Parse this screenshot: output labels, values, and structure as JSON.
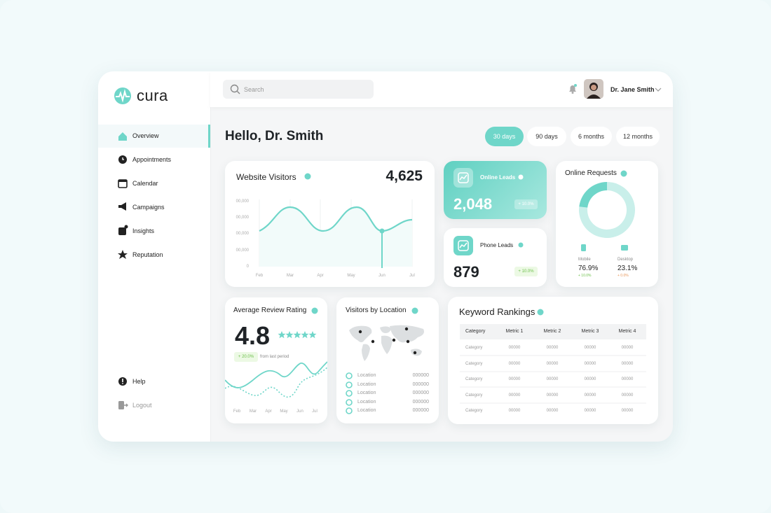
{
  "sidebar": {
    "brand": "cura",
    "nav": [
      "Overview",
      "Appointments",
      "Calendar",
      "Campaigns",
      "Insights",
      "Reputation"
    ],
    "footer": [
      "Help",
      "Logout"
    ]
  },
  "topbar": {
    "search_placeholder": "Search",
    "user": "Dr. Jane Smith"
  },
  "greeting": "Hello, Dr. Smith",
  "periods": [
    "30 days",
    "90 days",
    "6 months",
    "12 months"
  ],
  "website_visitors": {
    "title": "Website Visitors",
    "value": "4,625",
    "y_labels": [
      "00,000",
      "00,000",
      "00,000",
      "00,000",
      "0"
    ],
    "months": [
      "Feb",
      "Mar",
      "Apr",
      "May",
      "Jun",
      "Jul"
    ]
  },
  "online_leads": {
    "title": "Online Leads",
    "value": "2,048",
    "change": "+ 10.0%"
  },
  "phone_leads": {
    "title": "Phone Leads",
    "value": "879",
    "change": "+ 10.0%"
  },
  "online_requests": {
    "title": "Online Requests",
    "segments": [
      {
        "name": "Mobile",
        "value": 76.9,
        "value_label": "76.9%",
        "change": "+ 10.0%"
      },
      {
        "name": "Desktop",
        "value": 23.1,
        "value_label": "23.1%",
        "change": "+ 0.0%"
      }
    ]
  },
  "review_rating": {
    "title": "Average Review Rating",
    "value": "4.8",
    "change": "+ 20.0%",
    "note": "from last period",
    "months": [
      "Feb",
      "Mar",
      "Apr",
      "May",
      "Jun",
      "Jul"
    ]
  },
  "visitors_by_location": {
    "title": "Visitors by Location",
    "rows": [
      {
        "label": "Location",
        "value": "000000"
      },
      {
        "label": "Location",
        "value": "000000"
      },
      {
        "label": "Location",
        "value": "000000"
      },
      {
        "label": "Location",
        "value": "000000"
      },
      {
        "label": "Location",
        "value": "000000"
      }
    ]
  },
  "keyword_rankings": {
    "title": "Keyword Rankings",
    "columns": [
      "Category",
      "Metric 1",
      "Metric 2",
      "Metric 3",
      "Metric 4"
    ],
    "rows": [
      [
        "Category",
        "00000",
        "00000",
        "00000",
        "00000"
      ],
      [
        "Category",
        "00000",
        "00000",
        "00000",
        "00000"
      ],
      [
        "Category",
        "00000",
        "00000",
        "00000",
        "00000"
      ],
      [
        "Category",
        "00000",
        "00000",
        "00000",
        "00000"
      ],
      [
        "Category",
        "00000",
        "00000",
        "00000",
        "00000"
      ]
    ]
  }
}
